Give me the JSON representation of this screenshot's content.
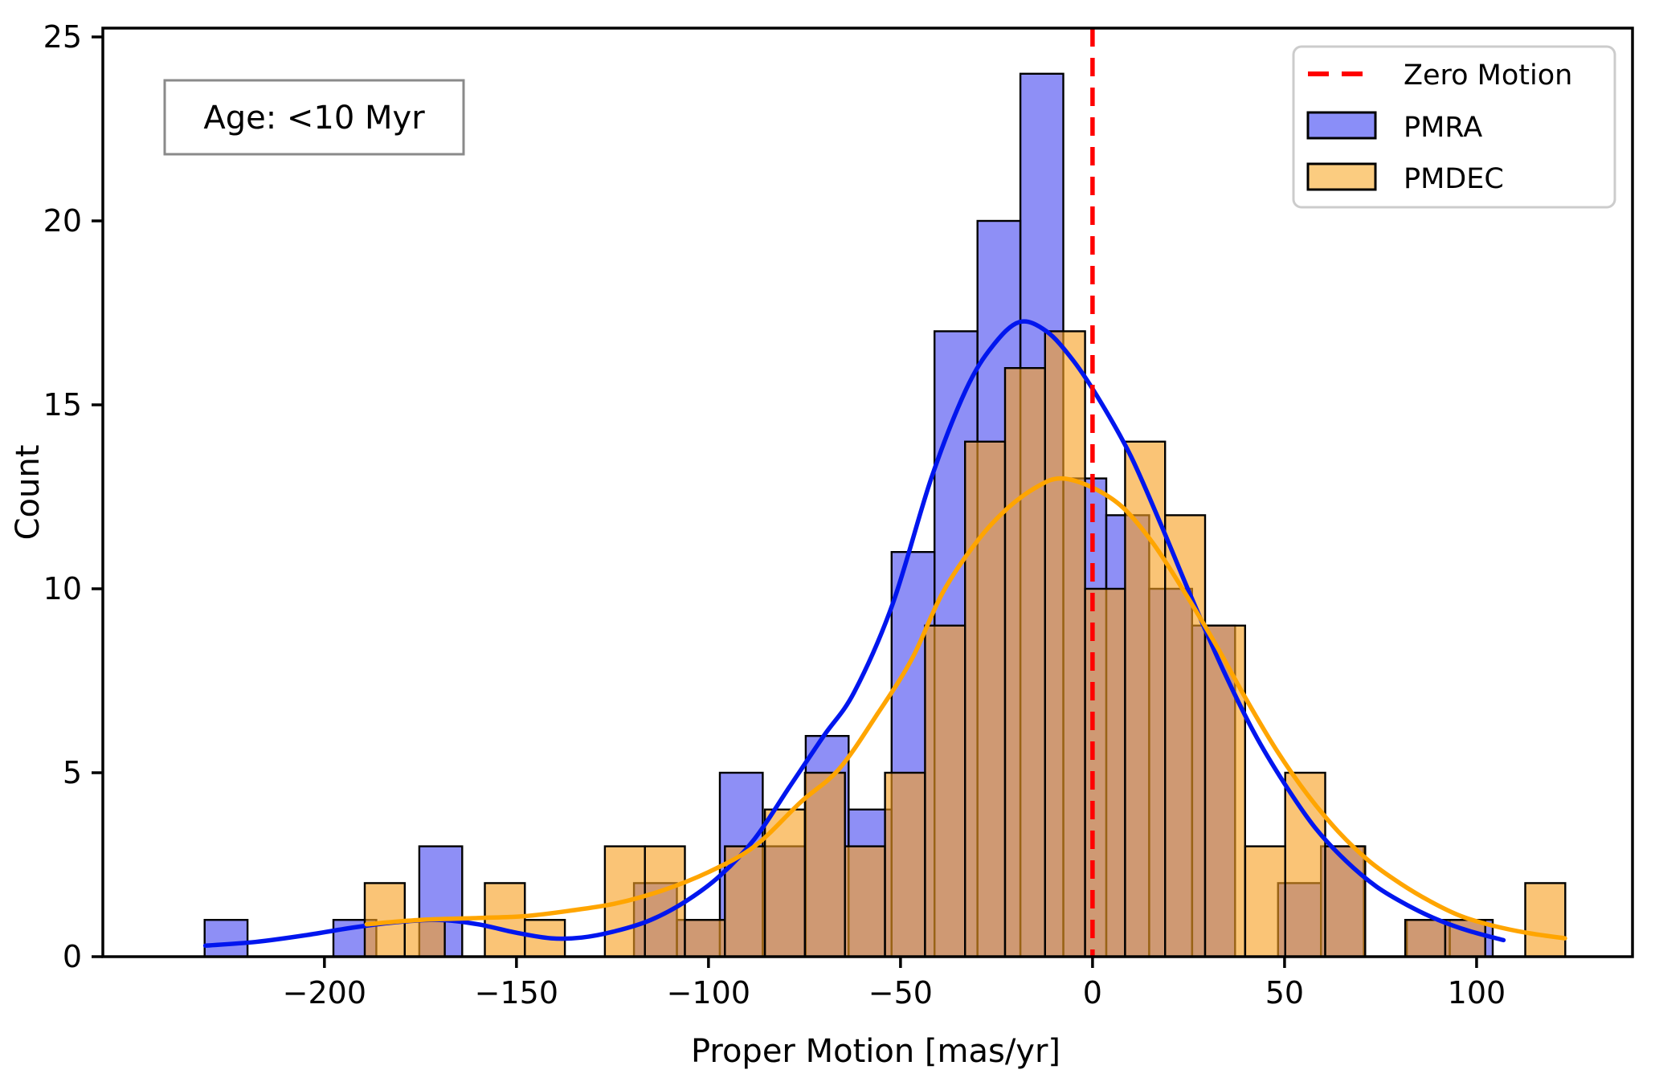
{
  "chart_data": {
    "type": "bar",
    "subtype": "overlaid-histograms-with-kde",
    "annotation_box": "Age: <10 Myr",
    "xlabel": "Proper Motion [mas/yr]",
    "ylabel": "Count",
    "xlim": [
      -257.7,
      140.6
    ],
    "ylim": [
      0,
      25.24
    ],
    "grid": false,
    "xticks": [
      -200,
      -150,
      -100,
      -50,
      0,
      50,
      100
    ],
    "xtick_labels": [
      "−200",
      "−150",
      "−100",
      "−50",
      "0",
      "50",
      "100"
    ],
    "yticks": [
      0,
      5,
      10,
      15,
      20,
      25
    ],
    "ytick_labels": [
      "0",
      "5",
      "10",
      "15",
      "20",
      "25"
    ],
    "zero_motion_line": {
      "x": 0,
      "color": "#ff0000",
      "style": "dashed"
    },
    "series": [
      {
        "name": "PMRA",
        "type": "histogram",
        "bin_start": -231.2,
        "bin_width": 11.18,
        "counts": [
          1,
          0,
          0,
          1,
          0,
          3,
          0,
          0,
          0,
          0,
          2,
          1,
          5,
          3,
          6,
          4,
          11,
          17,
          20,
          24,
          13,
          12,
          10,
          9,
          0,
          2,
          3,
          0,
          1,
          1
        ],
        "total_n": 149,
        "fill": "#4345f0",
        "fill_opacity": 0.6,
        "edge": "#000000",
        "swatch": "#8a8ef8",
        "kde_color": "#0016ee",
        "kde": [
          [
            -231,
            0.3
          ],
          [
            -218,
            0.4
          ],
          [
            -205,
            0.58
          ],
          [
            -192,
            0.8
          ],
          [
            -180,
            0.95
          ],
          [
            -170,
            1.0
          ],
          [
            -160,
            0.88
          ],
          [
            -150,
            0.65
          ],
          [
            -141,
            0.5
          ],
          [
            -133,
            0.52
          ],
          [
            -124,
            0.7
          ],
          [
            -115,
            1.0
          ],
          [
            -106,
            1.5
          ],
          [
            -97,
            2.2
          ],
          [
            -88,
            3.2
          ],
          [
            -79,
            4.6
          ],
          [
            -70,
            6.0
          ],
          [
            -62,
            7.2
          ],
          [
            -52,
            9.6
          ],
          [
            -42,
            13.0
          ],
          [
            -33,
            15.4
          ],
          [
            -26,
            16.6
          ],
          [
            -19,
            17.25
          ],
          [
            -12,
            17.0
          ],
          [
            -5,
            16.2
          ],
          [
            2,
            15.1
          ],
          [
            10,
            13.6
          ],
          [
            18,
            11.7
          ],
          [
            26,
            9.7
          ],
          [
            34,
            7.8
          ],
          [
            42,
            6.1
          ],
          [
            50,
            4.7
          ],
          [
            58,
            3.5
          ],
          [
            66,
            2.6
          ],
          [
            74,
            1.9
          ],
          [
            82,
            1.4
          ],
          [
            90,
            1.0
          ],
          [
            98,
            0.7
          ],
          [
            107,
            0.45
          ]
        ]
      },
      {
        "name": "PMDEC",
        "type": "histogram",
        "bin_start": -189.5,
        "bin_width": 10.42,
        "counts": [
          2,
          1,
          0,
          2,
          1,
          0,
          3,
          3,
          1,
          3,
          4,
          5,
          3,
          5,
          9,
          14,
          16,
          17,
          10,
          14,
          12,
          9,
          3,
          5,
          3,
          0,
          1,
          1,
          0,
          2
        ],
        "total_n": 149,
        "fill": "#f7a022",
        "fill_opacity": 0.62,
        "edge": "#000000",
        "swatch": "#fbcc80",
        "kde_color": "#ffa500",
        "kde": [
          [
            -189,
            0.88
          ],
          [
            -175,
            1.0
          ],
          [
            -160,
            1.05
          ],
          [
            -148,
            1.1
          ],
          [
            -136,
            1.25
          ],
          [
            -124,
            1.45
          ],
          [
            -112,
            1.8
          ],
          [
            -100,
            2.3
          ],
          [
            -88,
            3.0
          ],
          [
            -76,
            4.2
          ],
          [
            -66,
            5.1
          ],
          [
            -56,
            6.6
          ],
          [
            -47,
            8.1
          ],
          [
            -39,
            9.9
          ],
          [
            -30,
            11.3
          ],
          [
            -22,
            12.2
          ],
          [
            -14,
            12.8
          ],
          [
            -8,
            13.0
          ],
          [
            0,
            12.75
          ],
          [
            8,
            12.2
          ],
          [
            16,
            11.2
          ],
          [
            24,
            9.9
          ],
          [
            32,
            8.5
          ],
          [
            40,
            7.0
          ],
          [
            48,
            5.6
          ],
          [
            56,
            4.4
          ],
          [
            64,
            3.4
          ],
          [
            72,
            2.6
          ],
          [
            80,
            2.0
          ],
          [
            88,
            1.5
          ],
          [
            96,
            1.1
          ],
          [
            104,
            0.85
          ],
          [
            113,
            0.65
          ],
          [
            123,
            0.5
          ]
        ]
      }
    ],
    "legend": {
      "position": "upper right",
      "entries": [
        {
          "label": "Zero Motion",
          "kind": "dashed-line",
          "color": "#ff0000"
        },
        {
          "label": "PMRA",
          "kind": "patch",
          "color": "#8a8ef8"
        },
        {
          "label": "PMDEC",
          "kind": "patch",
          "color": "#fbcc80"
        }
      ]
    }
  }
}
